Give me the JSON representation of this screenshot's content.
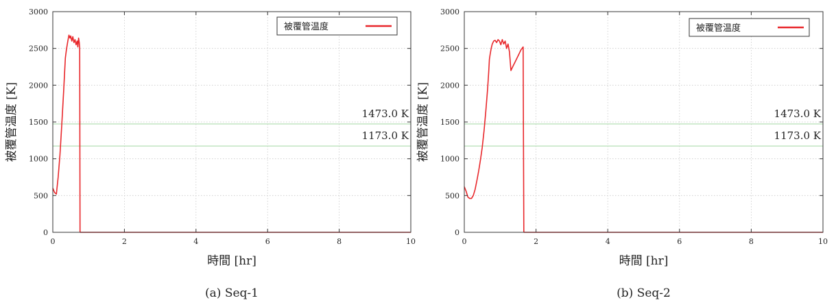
{
  "chart_data": [
    {
      "type": "line",
      "caption": "(a) Seq-1",
      "xlabel": "時間 [hr]",
      "ylabel": "被覆管温度 [K]",
      "xlim": [
        0,
        10
      ],
      "ylim": [
        0,
        3000
      ],
      "xticks": [
        "0",
        "2",
        "4",
        "6",
        "8",
        "10"
      ],
      "yticks": [
        "0",
        "500",
        "1000",
        "1500",
        "2000",
        "2500",
        "3000"
      ],
      "grid": true,
      "legend_position": "top-right",
      "series": [
        {
          "name": "被覆管温度",
          "color": "#e8262a",
          "x": [
            0.0,
            0.05,
            0.1,
            0.15,
            0.2,
            0.25,
            0.3,
            0.35,
            0.38,
            0.42,
            0.45,
            0.48,
            0.5,
            0.53,
            0.56,
            0.59,
            0.62,
            0.65,
            0.68,
            0.7,
            0.72,
            0.74,
            0.75,
            0.76
          ],
          "y": [
            600,
            540,
            520,
            750,
            1050,
            1450,
            1900,
            2370,
            2480,
            2600,
            2680,
            2640,
            2670,
            2600,
            2660,
            2580,
            2620,
            2550,
            2600,
            2520,
            2640,
            2580,
            2500,
            0
          ]
        }
      ],
      "reference_lines": [
        {
          "label": "1473.0 K",
          "y": 1473.0,
          "color": "#b6dfb6"
        },
        {
          "label": "1173.0 K",
          "y": 1173.0,
          "color": "#b6dfb6"
        }
      ]
    },
    {
      "type": "line",
      "caption": "(b) Seq-2",
      "xlabel": "時間 [hr]",
      "ylabel": "被覆管温度 [K]",
      "xlim": [
        0,
        10
      ],
      "ylim": [
        0,
        3000
      ],
      "xticks": [
        "0",
        "2",
        "4",
        "6",
        "8",
        "10"
      ],
      "yticks": [
        "0",
        "500",
        "1000",
        "1500",
        "2000",
        "2500",
        "3000"
      ],
      "grid": true,
      "legend_position": "top-right",
      "series": [
        {
          "name": "被覆管温度",
          "color": "#e8262a",
          "x": [
            0.0,
            0.05,
            0.1,
            0.15,
            0.2,
            0.25,
            0.3,
            0.35,
            0.4,
            0.45,
            0.5,
            0.55,
            0.6,
            0.65,
            0.68,
            0.7,
            0.72,
            0.75,
            0.78,
            0.82,
            0.86,
            0.9,
            0.94,
            0.98,
            1.02,
            1.06,
            1.1,
            1.14,
            1.18,
            1.22,
            1.26,
            1.3,
            1.36,
            1.42,
            1.5,
            1.58,
            1.64,
            1.65,
            1.66
          ],
          "y": [
            620,
            560,
            480,
            460,
            460,
            500,
            580,
            700,
            830,
            980,
            1150,
            1380,
            1650,
            1950,
            2180,
            2350,
            2420,
            2500,
            2560,
            2600,
            2610,
            2580,
            2620,
            2600,
            2550,
            2620,
            2560,
            2600,
            2500,
            2560,
            2450,
            2200,
            2260,
            2320,
            2400,
            2480,
            2520,
            1200,
            0
          ]
        }
      ],
      "reference_lines": [
        {
          "label": "1473.0 K",
          "y": 1473.0,
          "color": "#b6dfb6"
        },
        {
          "label": "1173.0 K",
          "y": 1173.0,
          "color": "#b6dfb6"
        }
      ]
    }
  ]
}
